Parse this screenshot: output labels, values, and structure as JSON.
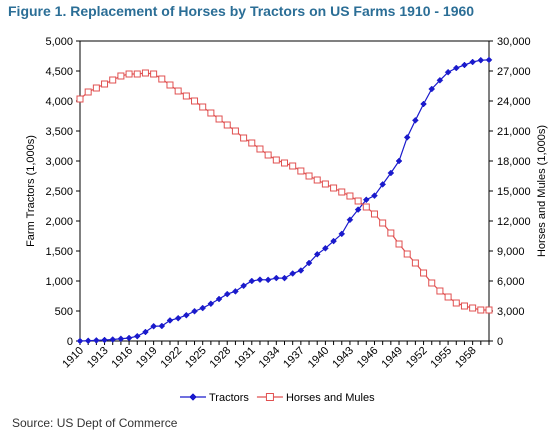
{
  "title": "Figure 1. Replacement of Horses by Tractors on US Farms 1910 - 1960",
  "source": "Source: US Dept of Commerce",
  "chart_data": {
    "type": "line",
    "title": "Figure 1. Replacement of Horses by Tractors on US Farms 1910 - 1960",
    "ylabel": "Farm Tractors (1,000s)",
    "y2label": "Horses and Mules (1,000s)",
    "ylim": [
      0,
      5000
    ],
    "y2lim": [
      0,
      30000
    ],
    "yticks": [
      "0",
      "500",
      "1,000",
      "1,500",
      "2,000",
      "2,500",
      "3,000",
      "3,500",
      "4,000",
      "4,500",
      "5,000"
    ],
    "y2ticks": [
      "0",
      "3,000",
      "6,000",
      "9,000",
      "12,000",
      "15,000",
      "18,000",
      "21,000",
      "24,000",
      "27,000",
      "30,000"
    ],
    "xticks": [
      "1910",
      "1913",
      "1916",
      "1919",
      "1922",
      "1925",
      "1928",
      "1931",
      "1934",
      "1937",
      "1940",
      "1943",
      "1946",
      "1949",
      "1952",
      "1955",
      "1958"
    ],
    "x": [
      1910,
      1911,
      1912,
      1913,
      1914,
      1915,
      1916,
      1917,
      1918,
      1919,
      1920,
      1921,
      1922,
      1923,
      1924,
      1925,
      1926,
      1927,
      1928,
      1929,
      1930,
      1931,
      1932,
      1933,
      1934,
      1935,
      1936,
      1937,
      1938,
      1939,
      1940,
      1941,
      1942,
      1943,
      1944,
      1945,
      1946,
      1947,
      1948,
      1949,
      1950,
      1951,
      1952,
      1953,
      1954,
      1955,
      1956,
      1957,
      1958,
      1959,
      1960
    ],
    "legend": "bottom",
    "grid": false,
    "series": [
      {
        "name": "Tractors",
        "axis": "left",
        "color": "#1a1acc",
        "marker": "diamond",
        "values": [
          1,
          4,
          10,
          17,
          25,
          37,
          50,
          80,
          150,
          246,
          250,
          343,
          380,
          430,
          496,
          549,
          621,
          700,
          782,
          827,
          920,
          1000,
          1022,
          1019,
          1049,
          1048,
          1125,
          1175,
          1300,
          1445,
          1545,
          1665,
          1785,
          2020,
          2190,
          2354,
          2422,
          2610,
          2800,
          3000,
          3394,
          3678,
          3950,
          4200,
          4345,
          4480,
          4550,
          4600,
          4650,
          4680,
          4685
        ]
      },
      {
        "name": "Horses and Mules",
        "axis": "right",
        "color": "#e05050",
        "marker": "square",
        "values": [
          24200,
          24900,
          25300,
          25700,
          26100,
          26500,
          26700,
          26700,
          26800,
          26700,
          26200,
          25600,
          25000,
          24500,
          24000,
          23400,
          22800,
          22200,
          21600,
          21000,
          20300,
          19800,
          19200,
          18600,
          18100,
          17800,
          17500,
          17000,
          16500,
          16100,
          15700,
          15300,
          14900,
          14500,
          14000,
          13400,
          12700,
          11800,
          10800,
          9700,
          8700,
          7800,
          6800,
          5800,
          5000,
          4400,
          3800,
          3500,
          3300,
          3100,
          3100
        ]
      }
    ]
  }
}
